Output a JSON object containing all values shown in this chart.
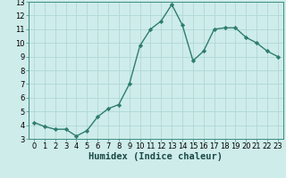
{
  "x": [
    0,
    1,
    2,
    3,
    4,
    5,
    6,
    7,
    8,
    9,
    10,
    11,
    12,
    13,
    14,
    15,
    16,
    17,
    18,
    19,
    20,
    21,
    22,
    23
  ],
  "y": [
    4.2,
    3.9,
    3.7,
    3.7,
    3.2,
    3.6,
    4.6,
    5.2,
    5.5,
    7.0,
    9.8,
    11.0,
    11.6,
    12.8,
    11.3,
    8.7,
    9.4,
    11.0,
    11.1,
    11.1,
    10.4,
    10.0,
    9.4,
    9.0
  ],
  "line_color": "#2e7d6e",
  "marker": "D",
  "marker_size": 2.2,
  "bg_color": "#ceecea",
  "grid_color": "#b0d8d5",
  "xlabel": "Humidex (Indice chaleur)",
  "ylim": [
    3,
    13
  ],
  "xlim": [
    -0.5,
    23.5
  ],
  "yticks": [
    3,
    4,
    5,
    6,
    7,
    8,
    9,
    10,
    11,
    12,
    13
  ],
  "xticks": [
    0,
    1,
    2,
    3,
    4,
    5,
    6,
    7,
    8,
    9,
    10,
    11,
    12,
    13,
    14,
    15,
    16,
    17,
    18,
    19,
    20,
    21,
    22,
    23
  ],
  "tick_fontsize": 6.0,
  "xlabel_fontsize": 7.5,
  "spine_color": "#3d8c80",
  "line_width": 1.0
}
